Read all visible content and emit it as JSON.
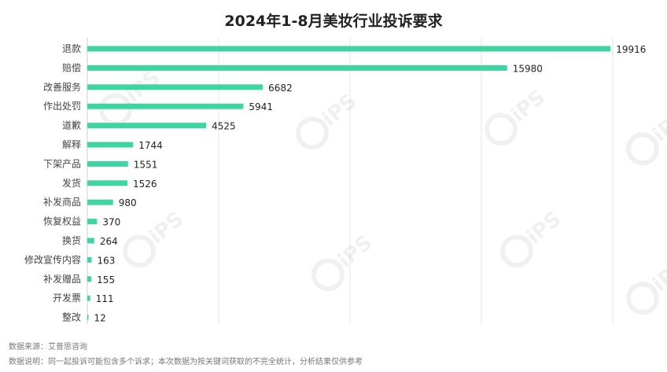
{
  "title": "2024年1-8月美妆行业投诉要求",
  "notes": {
    "source": "数据来源：艾普思咨询",
    "description": "数据说明：同一起投诉可能包含多个诉求；本次数据为按关键词获取的不完全统计，分析结果仅供参考"
  },
  "watermark": "IPS Consulting 艾普思",
  "chart_data": {
    "type": "bar",
    "orientation": "horizontal",
    "title": "2024年1-8月美妆行业投诉要求",
    "xlabel": "",
    "ylabel": "",
    "categories": [
      "退款",
      "赔偿",
      "改善服务",
      "作出处罚",
      "道歉",
      "解释",
      "下架产品",
      "发货",
      "补发商品",
      "恢复权益",
      "换货",
      "修改宣传内容",
      "补发赠品",
      "开发票",
      "整改"
    ],
    "values": [
      19916,
      15980,
      6682,
      5941,
      4525,
      1744,
      1551,
      1526,
      980,
      370,
      264,
      163,
      155,
      111,
      12
    ],
    "xlim": [
      0,
      20000
    ],
    "grid": true,
    "legend": "none",
    "bar_color": "#3ed5a0"
  }
}
